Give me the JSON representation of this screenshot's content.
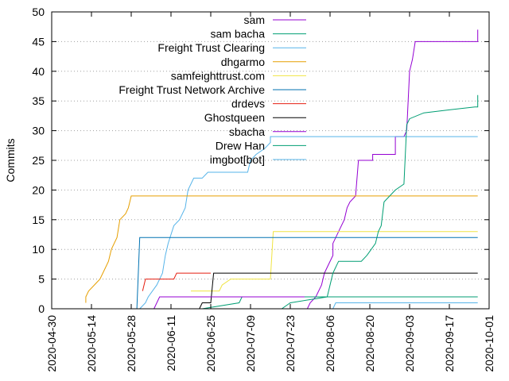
{
  "chart_data": {
    "type": "line",
    "title": "",
    "xlabel": "",
    "ylabel": "Commits",
    "ylim": [
      0,
      50
    ],
    "xlim": [
      "2020-04-30",
      "2020-10-01"
    ],
    "y_ticks": [
      0,
      5,
      10,
      15,
      20,
      25,
      30,
      35,
      40,
      45,
      50
    ],
    "x_ticks": [
      "2020-04-30",
      "2020-05-14",
      "2020-05-28",
      "2020-06-11",
      "2020-06-25",
      "2020-07-09",
      "2020-07-23",
      "2020-08-06",
      "2020-08-20",
      "2020-09-03",
      "2020-09-17",
      "2020-10-01"
    ],
    "grid": "horizontal dotted",
    "legend_position": "top-right",
    "series": [
      {
        "name": "sam",
        "color": "#9400d3",
        "points": [
          [
            "2020-07-29",
            0
          ],
          [
            "2020-07-30",
            1
          ],
          [
            "2020-08-01",
            2
          ],
          [
            "2020-08-03",
            4
          ],
          [
            "2020-08-04",
            6
          ],
          [
            "2020-08-07",
            9
          ],
          [
            "2020-08-07",
            11
          ],
          [
            "2020-08-09",
            13
          ],
          [
            "2020-08-11",
            15
          ],
          [
            "2020-08-12",
            17
          ],
          [
            "2020-08-13",
            18
          ],
          [
            "2020-08-15",
            19
          ],
          [
            "2020-08-16",
            25
          ],
          [
            "2020-08-21",
            25
          ],
          [
            "2020-08-21",
            26
          ],
          [
            "2020-08-29",
            26
          ],
          [
            "2020-08-29",
            29
          ],
          [
            "2020-09-01",
            29
          ],
          [
            "2020-09-02",
            30
          ],
          [
            "2020-09-03",
            40
          ],
          [
            "2020-09-04",
            42
          ],
          [
            "2020-09-05",
            45
          ],
          [
            "2020-09-27",
            45
          ],
          [
            "2020-09-27",
            46
          ],
          [
            "2020-09-27",
            47
          ]
        ]
      },
      {
        "name": "sam bacha",
        "color": "#009e73",
        "points": [
          [
            "2020-06-22",
            0
          ],
          [
            "2020-07-05",
            1
          ],
          [
            "2020-07-06",
            2
          ],
          [
            "2020-09-27",
            2
          ]
        ]
      },
      {
        "name": "Freight Trust  Clearing",
        "color": "#56b4e9",
        "points": [
          [
            "2020-05-31",
            0
          ],
          [
            "2020-06-02",
            1
          ],
          [
            "2020-06-03",
            2
          ],
          [
            "2020-06-06",
            4
          ],
          [
            "2020-06-08",
            6
          ],
          [
            "2020-06-09",
            9
          ],
          [
            "2020-06-10",
            11
          ],
          [
            "2020-06-12",
            14
          ],
          [
            "2020-06-14",
            15
          ],
          [
            "2020-06-16",
            17
          ],
          [
            "2020-06-17",
            20
          ],
          [
            "2020-06-19",
            22
          ],
          [
            "2020-06-22",
            22
          ],
          [
            "2020-06-24",
            23
          ],
          [
            "2020-07-08",
            23
          ],
          [
            "2020-07-09",
            25
          ],
          [
            "2020-07-11",
            26
          ],
          [
            "2020-07-14",
            27
          ],
          [
            "2020-07-16",
            28
          ],
          [
            "2020-07-16",
            29
          ],
          [
            "2020-09-27",
            29
          ]
        ]
      },
      {
        "name": "dhgarmo",
        "color": "#e69f00",
        "points": [
          [
            "2020-05-12",
            1
          ],
          [
            "2020-05-12",
            2
          ],
          [
            "2020-05-13",
            3
          ],
          [
            "2020-05-15",
            4
          ],
          [
            "2020-05-17",
            5
          ],
          [
            "2020-05-18",
            6
          ],
          [
            "2020-05-20",
            8
          ],
          [
            "2020-05-21",
            10
          ],
          [
            "2020-05-23",
            12
          ],
          [
            "2020-05-24",
            15
          ],
          [
            "2020-05-26",
            16
          ],
          [
            "2020-05-27",
            17
          ],
          [
            "2020-05-28",
            19
          ],
          [
            "2020-09-27",
            19
          ]
        ]
      },
      {
        "name": "samfeighttrust.com",
        "color": "#f0e442",
        "points": [
          [
            "2020-06-18",
            3
          ],
          [
            "2020-06-28",
            3
          ],
          [
            "2020-06-29",
            4
          ],
          [
            "2020-07-02",
            5
          ],
          [
            "2020-07-16",
            5
          ],
          [
            "2020-07-17",
            13
          ],
          [
            "2020-09-27",
            13
          ]
        ]
      },
      {
        "name": "Freight Trust Network Archive",
        "color": "#0072b2",
        "points": [
          [
            "2020-05-27",
            0
          ],
          [
            "2020-05-30",
            0
          ],
          [
            "2020-05-31",
            12
          ],
          [
            "2020-09-27",
            12
          ]
        ]
      },
      {
        "name": "drdevs",
        "color": "#e51e10",
        "points": [
          [
            "2020-06-01",
            3
          ],
          [
            "2020-06-02",
            5
          ],
          [
            "2020-06-12",
            5
          ],
          [
            "2020-06-13",
            6
          ],
          [
            "2020-06-25",
            6
          ]
        ]
      },
      {
        "name": "Ghostqueen",
        "color": "#000000",
        "points": [
          [
            "2020-06-21",
            0
          ],
          [
            "2020-06-22",
            1
          ],
          [
            "2020-06-25",
            1
          ],
          [
            "2020-06-26",
            6
          ],
          [
            "2020-09-27",
            6
          ]
        ]
      },
      {
        "name": "sbacha",
        "color": "#9400d3",
        "points": [
          [
            "2020-06-05",
            0
          ],
          [
            "2020-06-07",
            2
          ],
          [
            "2020-07-03",
            2
          ],
          [
            "2020-07-04",
            2
          ],
          [
            "2020-07-28",
            2
          ]
        ]
      },
      {
        "name": "Drew Han",
        "color": "#009e73",
        "points": [
          [
            "2020-07-20",
            0
          ],
          [
            "2020-07-23",
            1
          ],
          [
            "2020-08-05",
            2
          ],
          [
            "2020-08-07",
            6
          ],
          [
            "2020-08-09",
            8
          ],
          [
            "2020-08-17",
            8
          ],
          [
            "2020-08-19",
            9
          ],
          [
            "2020-08-22",
            11
          ],
          [
            "2020-08-23",
            13
          ],
          [
            "2020-08-24",
            14
          ],
          [
            "2020-08-25",
            18
          ],
          [
            "2020-08-27",
            19
          ],
          [
            "2020-08-29",
            20
          ],
          [
            "2020-09-01",
            21
          ],
          [
            "2020-09-02",
            31
          ],
          [
            "2020-09-03",
            32
          ],
          [
            "2020-09-08",
            33
          ],
          [
            "2020-09-17",
            33.5
          ],
          [
            "2020-09-26",
            34
          ],
          [
            "2020-09-27",
            34
          ],
          [
            "2020-09-27",
            36
          ]
        ]
      },
      {
        "name": "imgbot[bot]",
        "color": "#56b4e9",
        "points": [
          [
            "2020-08-07",
            0
          ],
          [
            "2020-08-08",
            1
          ],
          [
            "2020-09-27",
            1
          ]
        ]
      }
    ]
  }
}
